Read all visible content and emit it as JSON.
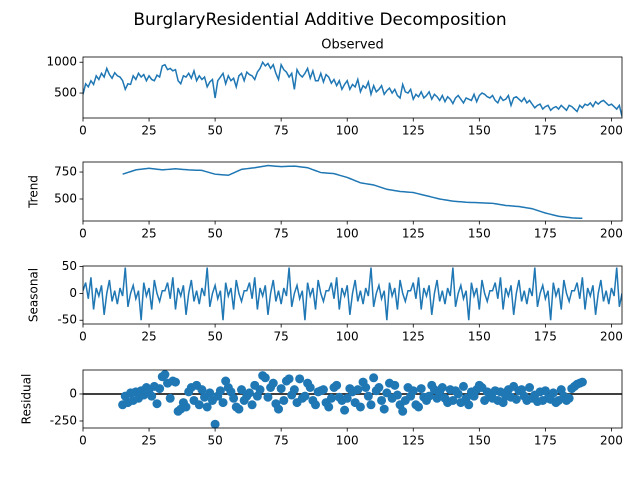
{
  "chart_data": {
    "type": "decomposition",
    "title": "BurglaryResidential Additive Decomposition",
    "color": "#1f77b4",
    "x": [
      0,
      1,
      2,
      3,
      4,
      5,
      6,
      7,
      8,
      9,
      10,
      11,
      12,
      13,
      14,
      15,
      16,
      17,
      18,
      19,
      20,
      21,
      22,
      23,
      24,
      25,
      26,
      27,
      28,
      29,
      30,
      31,
      32,
      33,
      34,
      35,
      36,
      37,
      38,
      39,
      40,
      41,
      42,
      43,
      44,
      45,
      46,
      47,
      48,
      49,
      50,
      51,
      52,
      53,
      54,
      55,
      56,
      57,
      58,
      59,
      60,
      61,
      62,
      63,
      64,
      65,
      66,
      67,
      68,
      69,
      70,
      71,
      72,
      73,
      74,
      75,
      76,
      77,
      78,
      79,
      80,
      81,
      82,
      83,
      84,
      85,
      86,
      87,
      88,
      89,
      90,
      91,
      92,
      93,
      94,
      95,
      96,
      97,
      98,
      99,
      100,
      101,
      102,
      103,
      104,
      105,
      106,
      107,
      108,
      109,
      110,
      111,
      112,
      113,
      114,
      115,
      116,
      117,
      118,
      119,
      120,
      121,
      122,
      123,
      124,
      125,
      126,
      127,
      128,
      129,
      130,
      131,
      132,
      133,
      134,
      135,
      136,
      137,
      138,
      139,
      140,
      141,
      142,
      143,
      144,
      145,
      146,
      147,
      148,
      149,
      150,
      151,
      152,
      153,
      154,
      155,
      156,
      157,
      158,
      159,
      160,
      161,
      162,
      163,
      164,
      165,
      166,
      167,
      168,
      169,
      170,
      171,
      172,
      173,
      174,
      175,
      176,
      177,
      178,
      179,
      180,
      181,
      182,
      183,
      184,
      185,
      186,
      187,
      188,
      189,
      190,
      191,
      192,
      193,
      194,
      195,
      196,
      197,
      198,
      199,
      200,
      201,
      202,
      203,
      204
    ],
    "xlim": [
      0,
      204
    ],
    "xticks": [
      0,
      25,
      50,
      75,
      100,
      125,
      150,
      175,
      200
    ],
    "panels": [
      {
        "type": "line",
        "title": "Observed",
        "ylim": [
          95,
          1085
        ],
        "yticks": [
          500,
          1000
        ],
        "values": [
          480,
          650,
          600,
          700,
          640,
          780,
          720,
          820,
          760,
          900,
          800,
          740,
          830,
          780,
          760,
          700,
          560,
          650,
          640,
          780,
          720,
          820,
          760,
          800,
          700,
          780,
          720,
          700,
          790,
          760,
          940,
          960,
          880,
          900,
          860,
          880,
          700,
          650,
          780,
          760,
          820,
          740,
          860,
          700,
          780,
          720,
          760,
          600,
          680,
          720,
          420,
          700,
          760,
          820,
          650,
          780,
          700,
          740,
          600,
          780,
          820,
          700,
          840,
          800,
          780,
          720,
          840,
          900,
          1000,
          940,
          980,
          900,
          960,
          820,
          720,
          960,
          880,
          840,
          760,
          820,
          560,
          880,
          800,
          760,
          820,
          900,
          740,
          860,
          700,
          700,
          820,
          680,
          800,
          760,
          660,
          720,
          620,
          700,
          560,
          640,
          700,
          560,
          640,
          600,
          720,
          520,
          620,
          580,
          680,
          480,
          620,
          520,
          560,
          620,
          480,
          540,
          580,
          500,
          560,
          460,
          420,
          640,
          520,
          500,
          560,
          400,
          480,
          440,
          520,
          420,
          460,
          520,
          400,
          480,
          440,
          380,
          460,
          360,
          440,
          400,
          330,
          420,
          460,
          400,
          340,
          420,
          400,
          380,
          480,
          360,
          460,
          500,
          480,
          440,
          420,
          460,
          380,
          340,
          440,
          380,
          400,
          460,
          300,
          420,
          440,
          400,
          360,
          420,
          340,
          380,
          320,
          260,
          300,
          320,
          240,
          280,
          300,
          220,
          260,
          280,
          240,
          300,
          260,
          220,
          300,
          280,
          240,
          200,
          300,
          260,
          320,
          300,
          340,
          280,
          360,
          320,
          360,
          380,
          340,
          300,
          320,
          280,
          240,
          300,
          120
        ]
      },
      {
        "type": "line",
        "ylabel": "Trend",
        "ylim": [
          296,
          843
        ],
        "yticks": [
          500,
          750
        ],
        "values": [
          null,
          null,
          null,
          null,
          null,
          null,
          null,
          null,
          null,
          null,
          null,
          null,
          null,
          null,
          null,
          730,
          738,
          746,
          754,
          762,
          770,
          773,
          776,
          779,
          782,
          785,
          782,
          779,
          776,
          773,
          770,
          772,
          774,
          776,
          778,
          780,
          778,
          776,
          774,
          772,
          770,
          769,
          768,
          767,
          766,
          765,
          758,
          751,
          744,
          737,
          730,
          728,
          726,
          724,
          722,
          720,
          731,
          742,
          753,
          764,
          775,
          778,
          781,
          784,
          787,
          790,
          794,
          798,
          802,
          806,
          810,
          808,
          806,
          804,
          802,
          800,
          801,
          802,
          803,
          804,
          805,
          802,
          799,
          796,
          793,
          790,
          781,
          772,
          763,
          754,
          745,
          743,
          741,
          739,
          737,
          735,
          728,
          721,
          714,
          707,
          700,
          690,
          680,
          670,
          660,
          650,
          646,
          642,
          638,
          634,
          630,
          622,
          614,
          606,
          598,
          590,
          586,
          582,
          578,
          574,
          570,
          568,
          566,
          564,
          562,
          560,
          554,
          548,
          542,
          536,
          530,
          524,
          518,
          512,
          506,
          500,
          496,
          492,
          488,
          484,
          480,
          478,
          476,
          474,
          472,
          470,
          469,
          468,
          467,
          466,
          465,
          464,
          463,
          462,
          461,
          460,
          456,
          452,
          448,
          444,
          440,
          438,
          436,
          434,
          432,
          430,
          426,
          422,
          418,
          414,
          410,
          402,
          394,
          386,
          378,
          370,
          364,
          358,
          352,
          346,
          340,
          337,
          334,
          331,
          328,
          325,
          324,
          323,
          322,
          321,
          null,
          null,
          null,
          null,
          null,
          null,
          null,
          null,
          null,
          null,
          null,
          null,
          null,
          null,
          null
        ]
      },
      {
        "type": "line",
        "ylabel": "Seasonal",
        "ylim": [
          -57,
          51
        ],
        "yticks": [
          -50,
          0,
          50
        ],
        "values": [
          5,
          20,
          -10,
          30,
          -30,
          10,
          -5,
          15,
          -40,
          0,
          25,
          -15,
          5,
          -20,
          10,
          -5,
          48,
          -25,
          0,
          15,
          -10,
          5,
          -50,
          20,
          -5,
          10,
          -30,
          25,
          0,
          -15,
          5,
          5,
          20,
          -10,
          30,
          -30,
          10,
          -5,
          15,
          -40,
          0,
          25,
          -15,
          5,
          -20,
          10,
          -5,
          48,
          -25,
          0,
          15,
          -10,
          5,
          -50,
          20,
          -5,
          10,
          -30,
          25,
          0,
          -15,
          5,
          5,
          20,
          -10,
          30,
          -30,
          10,
          -5,
          15,
          -40,
          0,
          25,
          -15,
          5,
          -20,
          10,
          -5,
          48,
          -25,
          0,
          15,
          -10,
          5,
          -50,
          20,
          -5,
          10,
          -30,
          25,
          0,
          -15,
          5,
          5,
          20,
          -10,
          30,
          -30,
          10,
          -5,
          15,
          -40,
          0,
          25,
          -15,
          5,
          -20,
          10,
          -5,
          48,
          -25,
          0,
          15,
          -10,
          5,
          -50,
          20,
          -5,
          10,
          -30,
          25,
          0,
          -15,
          5,
          5,
          20,
          -10,
          30,
          -30,
          10,
          -5,
          15,
          -40,
          0,
          25,
          -15,
          5,
          -20,
          10,
          -5,
          48,
          -25,
          0,
          15,
          -10,
          5,
          -50,
          20,
          -5,
          10,
          -30,
          25,
          0,
          -15,
          5,
          5,
          20,
          -10,
          30,
          -30,
          10,
          -5,
          15,
          -40,
          0,
          25,
          -15,
          5,
          -20,
          10,
          -5,
          48,
          -25,
          0,
          15,
          -10,
          5,
          -50,
          20,
          -5,
          10,
          -30,
          25,
          0,
          -15,
          5,
          5,
          20,
          -10,
          30,
          -30,
          10,
          -5,
          15,
          -40,
          0,
          25,
          -15,
          5,
          -20,
          10,
          -5,
          48,
          -25,
          0
        ]
      },
      {
        "type": "scatter",
        "ylabel": "Residual",
        "ylim": [
          -315,
          222
        ],
        "yticks": [
          -250,
          0
        ],
        "baseline": 0,
        "values": [
          null,
          null,
          null,
          null,
          null,
          null,
          null,
          null,
          null,
          null,
          null,
          null,
          null,
          null,
          null,
          -100,
          -20,
          -80,
          10,
          -60,
          20,
          -40,
          30,
          -10,
          60,
          40,
          -20,
          70,
          -90,
          50,
          160,
          180,
          100,
          -40,
          120,
          110,
          -160,
          -140,
          -80,
          -120,
          20,
          60,
          -60,
          80,
          -100,
          40,
          -30,
          -120,
          10,
          -60,
          -280,
          -20,
          30,
          -80,
          120,
          60,
          20,
          -40,
          -120,
          -140,
          40,
          -60,
          -20,
          10,
          -100,
          80,
          -20,
          40,
          170,
          150,
          -30,
          60,
          100,
          -90,
          -140,
          50,
          -60,
          120,
          140,
          -10,
          40,
          -80,
          140,
          -40,
          -20,
          100,
          60,
          -60,
          -100,
          20,
          30,
          40,
          -80,
          -120,
          -40,
          60,
          80,
          -30,
          -60,
          -150,
          -40,
          50,
          20,
          -80,
          40,
          -120,
          110,
          60,
          -20,
          -100,
          150,
          30,
          60,
          -60,
          -140,
          10,
          100,
          -40,
          80,
          -10,
          -100,
          -160,
          -60,
          60,
          -20,
          30,
          -100,
          -120,
          50,
          -30,
          -60,
          -20,
          80,
          40,
          -40,
          20,
          60,
          -40,
          -80,
          40,
          -60,
          30,
          0,
          -80,
          70,
          -40,
          -100,
          20,
          -20,
          40,
          80,
          60,
          -60,
          20,
          -20,
          -40,
          30,
          -60,
          20,
          -80,
          -20,
          40,
          -30,
          70,
          -50,
          30,
          40,
          -20,
          -60,
          60,
          -40,
          -10,
          -70,
          20,
          -60,
          30,
          -40,
          -50,
          10,
          -80,
          -60,
          40,
          -20,
          -60,
          -40,
          50,
          70,
          90,
          100,
          110,
          null,
          null,
          null,
          null,
          null,
          null,
          null,
          null,
          null,
          null,
          null,
          null,
          null,
          null,
          null
        ]
      }
    ]
  }
}
